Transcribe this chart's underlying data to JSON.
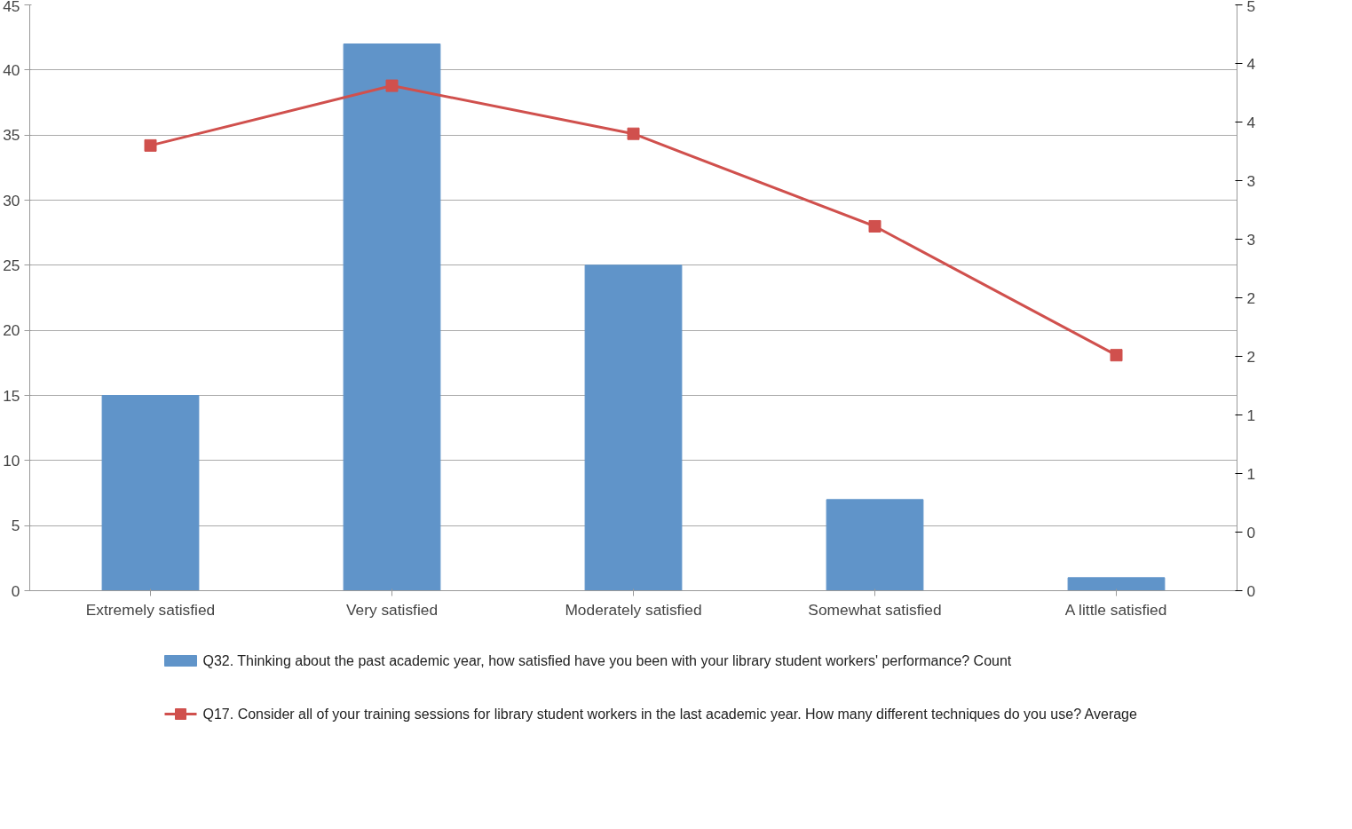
{
  "chart_data": {
    "type": "bar",
    "categories": [
      "Extremely satisfied",
      "Very satisfied",
      "Moderately satisfied",
      "Somewhat satisfied",
      "A little satisfied"
    ],
    "series": [
      {
        "name": "Q32. Thinking about the past academic year, how satisfied have you been with your library student workers' performance? Count",
        "color": "#6094c9",
        "values": [
          15,
          42,
          25,
          7,
          1
        ]
      },
      {
        "name": "Q17. Consider all of your training sessions for library student workers in the last academic year. How many different techniques do you use? Average",
        "type": "line",
        "axis": "y2",
        "color": "#d0504d",
        "marker": "square",
        "values": [
          3.8,
          4.31,
          3.9,
          3.11,
          2.01
        ]
      }
    ],
    "ylim": [
      0,
      45
    ],
    "yticks": [
      0,
      5,
      10,
      15,
      20,
      25,
      30,
      35,
      40,
      45
    ],
    "y2lim": [
      0,
      5
    ],
    "y2ticks": [
      {
        "value": 0,
        "label": "0"
      },
      {
        "value": 0.5,
        "label": "0"
      },
      {
        "value": 1,
        "label": "1"
      },
      {
        "value": 1.5,
        "label": "1"
      },
      {
        "value": 2,
        "label": "2"
      },
      {
        "value": 2.5,
        "label": "2"
      },
      {
        "value": 3,
        "label": "3"
      },
      {
        "value": 3.5,
        "label": "3"
      },
      {
        "value": 4,
        "label": "4"
      },
      {
        "value": 4.5,
        "label": "4"
      },
      {
        "value": 5,
        "label": "5"
      }
    ],
    "grid": "y",
    "legend": "bottom"
  }
}
